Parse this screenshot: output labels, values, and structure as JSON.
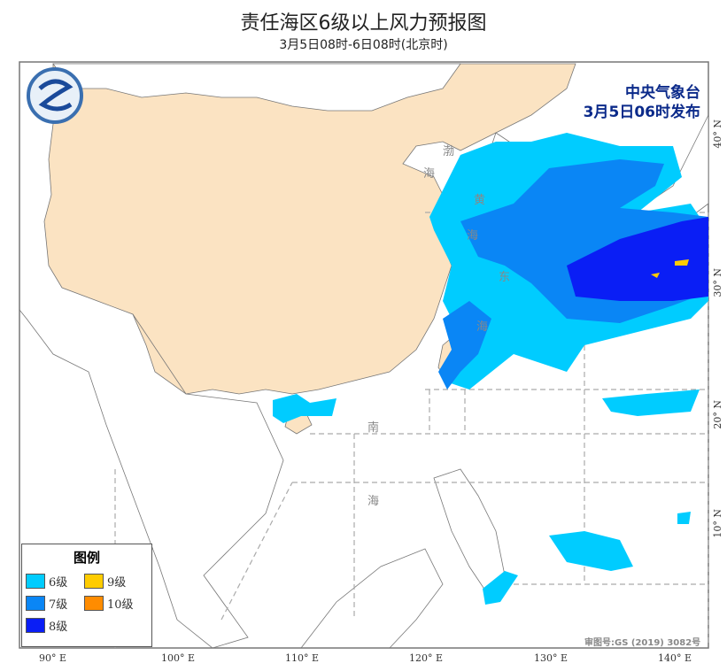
{
  "title": "责任海区6级以上风力预报图",
  "subtitle": "3月5日08时-6日08时(北京时)",
  "publisher": {
    "name": "中央气象台",
    "time": "3月5日06时发布"
  },
  "legend": {
    "title": "图例",
    "items": [
      {
        "label": "6级",
        "color": "#00ccff"
      },
      {
        "label": "7级",
        "color": "#0a86f5"
      },
      {
        "label": "8级",
        "color": "#0a1ef5"
      },
      {
        "label": "9级",
        "color": "#ffcc00"
      },
      {
        "label": "10级",
        "color": "#ff8c00"
      }
    ]
  },
  "lon_ticks": [
    "90° E",
    "100° E",
    "110° E",
    "120° E",
    "130° E",
    "140° E"
  ],
  "lat_ticks": [
    "40° N",
    "30° N",
    "20° N",
    "10° N"
  ],
  "sea_labels": [
    "渤",
    "海",
    "黄",
    "海",
    "东",
    "海",
    "南",
    "海"
  ],
  "review_number": "审图号:GS (2019) 3082号",
  "colors": {
    "land": "#fbe3c2",
    "sea": "#ffffff"
  }
}
